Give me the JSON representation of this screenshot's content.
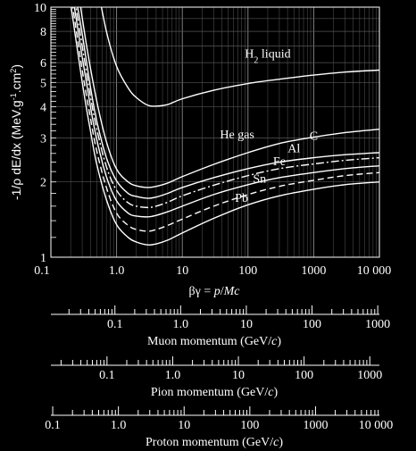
{
  "chart_data": {
    "type": "line",
    "x_scale": "log",
    "y_scale": "log",
    "xlim": [
      0.1,
      10000
    ],
    "ylim": [
      1,
      10
    ],
    "grid": true,
    "ylabel": "-1/ρ dE/dx (MeV.g-1.cm2)",
    "ylabel_parts": {
      "prefix": "-1/ρ dE/dx (MeV.g",
      "sup1": "-1",
      "mid": ".cm",
      "sup2": "2",
      "suffix": ")"
    },
    "xlabel": "βγ = p/Mc",
    "xlabel_parts": {
      "greek": "βγ",
      "eq": " = ",
      "p": "p",
      "slash": "/",
      "M": "M",
      "c": "c"
    },
    "x_ticks": [
      "0.1",
      "1.0",
      "10",
      "100",
      "1000",
      "10 000"
    ],
    "y_ticks": [
      "1",
      "2",
      "3",
      "4",
      "5",
      "6",
      "8",
      "10"
    ],
    "y_tick_values": [
      1,
      2,
      3,
      4,
      5,
      6,
      8,
      10
    ],
    "series": [
      {
        "name": "H2 liquid",
        "label_parts": {
          "main": "H",
          "sub": "2",
          "rest": " liquid"
        },
        "style": "solid",
        "x": [
          0.5,
          0.7,
          1.0,
          1.5,
          2.0,
          3.0,
          4.0,
          6.0,
          10,
          30,
          100,
          300,
          1000,
          3000,
          10000
        ],
        "y": [
          12.5,
          8.0,
          5.8,
          4.75,
          4.35,
          4.05,
          4.02,
          4.08,
          4.3,
          4.65,
          4.95,
          5.15,
          5.35,
          5.5,
          5.6
        ]
      },
      {
        "name": "He gas",
        "style": "solid",
        "x": [
          0.25,
          0.35,
          0.5,
          0.7,
          1.0,
          1.5,
          2.0,
          3.0,
          4.0,
          6.0,
          10,
          30,
          100,
          300,
          1000,
          3000,
          10000
        ],
        "y": [
          12.5,
          7.0,
          4.2,
          2.9,
          2.25,
          2.0,
          1.93,
          1.9,
          1.92,
          1.98,
          2.1,
          2.35,
          2.62,
          2.85,
          3.02,
          3.15,
          3.25
        ]
      },
      {
        "name": "C",
        "style": "solid",
        "x": [
          0.22,
          0.3,
          0.4,
          0.5,
          0.7,
          1.0,
          1.5,
          2.0,
          3.0,
          4.0,
          6.0,
          10,
          30,
          100,
          300,
          1000,
          3000,
          10000
        ],
        "y": [
          12.5,
          7.8,
          4.8,
          3.5,
          2.5,
          2.02,
          1.8,
          1.75,
          1.72,
          1.74,
          1.8,
          1.9,
          2.08,
          2.26,
          2.4,
          2.5,
          2.57,
          2.62
        ]
      },
      {
        "name": "Al",
        "style": "dash-dot",
        "x": [
          0.21,
          0.3,
          0.4,
          0.5,
          0.7,
          1.0,
          1.5,
          2.0,
          3.0,
          4.0,
          6.0,
          10,
          30,
          100,
          300,
          1000,
          3000,
          10000
        ],
        "y": [
          12.5,
          7.0,
          4.4,
          3.25,
          2.3,
          1.85,
          1.65,
          1.6,
          1.58,
          1.6,
          1.66,
          1.76,
          1.94,
          2.12,
          2.26,
          2.36,
          2.44,
          2.5
        ]
      },
      {
        "name": "Fe",
        "style": "solid",
        "x": [
          0.2,
          0.3,
          0.4,
          0.5,
          0.7,
          1.0,
          1.5,
          2.0,
          3.0,
          4.0,
          6.0,
          10,
          30,
          100,
          300,
          1000,
          3000,
          10000
        ],
        "y": [
          12.5,
          6.3,
          4.0,
          2.95,
          2.1,
          1.68,
          1.5,
          1.46,
          1.45,
          1.47,
          1.52,
          1.6,
          1.78,
          1.95,
          2.08,
          2.18,
          2.26,
          2.32
        ]
      },
      {
        "name": "Sn",
        "style": "dashed",
        "x": [
          0.19,
          0.3,
          0.4,
          0.5,
          0.7,
          1.0,
          1.5,
          2.0,
          3.0,
          4.0,
          6.0,
          10,
          30,
          100,
          300,
          1000,
          3000,
          10000
        ],
        "y": [
          12.5,
          5.6,
          3.6,
          2.65,
          1.9,
          1.5,
          1.34,
          1.29,
          1.27,
          1.29,
          1.34,
          1.42,
          1.6,
          1.78,
          1.92,
          2.03,
          2.12,
          2.18
        ]
      },
      {
        "name": "Pb",
        "style": "solid",
        "x": [
          0.18,
          0.3,
          0.4,
          0.5,
          0.7,
          1.0,
          1.5,
          2.0,
          3.0,
          4.0,
          6.0,
          10,
          30,
          100,
          300,
          1000,
          3000,
          10000
        ],
        "y": [
          12.5,
          5.0,
          3.2,
          2.35,
          1.7,
          1.35,
          1.2,
          1.15,
          1.12,
          1.13,
          1.17,
          1.25,
          1.43,
          1.62,
          1.76,
          1.87,
          1.95,
          2.0
        ]
      }
    ],
    "momentum_axes": [
      {
        "label": "Muon momentum (GeV/c)",
        "label_parts": {
          "main": "Muon momentum (GeV/",
          "c": "c",
          "end": ")"
        },
        "ticks": [
          "0.1",
          "1.0",
          "10",
          "100",
          "1000"
        ],
        "tick_values": [
          0.1,
          1,
          10,
          100,
          1000
        ],
        "range": [
          0.0106,
          1057
        ]
      },
      {
        "label": "Pion momentum (GeV/c)",
        "label_parts": {
          "main": "Pion momentum (GeV/",
          "c": "c",
          "end": ")"
        },
        "ticks": [
          "0.1",
          "1.0",
          "10",
          "100",
          "1000"
        ],
        "tick_values": [
          0.1,
          1,
          10,
          100,
          1000
        ],
        "range": [
          0.014,
          1396
        ]
      },
      {
        "label": "Proton momentum (GeV/c)",
        "label_parts": {
          "main": "Proton momentum (GeV/",
          "c": "c",
          "end": ")"
        },
        "ticks": [
          "0.1",
          "1.0",
          "10",
          "100",
          "1000",
          "10 000"
        ],
        "tick_values": [
          0.1,
          1,
          10,
          100,
          1000,
          10000
        ],
        "range": [
          0.0938,
          9383
        ]
      }
    ]
  }
}
